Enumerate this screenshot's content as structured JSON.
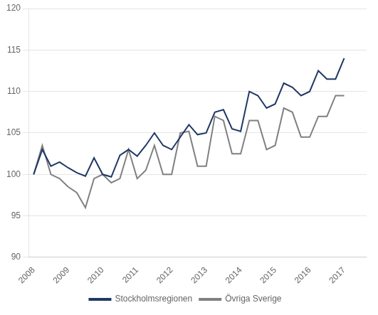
{
  "chart_data": {
    "type": "line",
    "x": [
      2008,
      2008.25,
      2008.5,
      2008.75,
      2009,
      2009.25,
      2009.5,
      2009.75,
      2010,
      2010.25,
      2010.5,
      2010.75,
      2011,
      2011.25,
      2011.5,
      2011.75,
      2012,
      2012.25,
      2012.5,
      2012.75,
      2013,
      2013.25,
      2013.5,
      2013.75,
      2014,
      2014.25,
      2014.5,
      2014.75,
      2015,
      2015.25,
      2015.5,
      2015.75,
      2016,
      2016.25,
      2016.5,
      2016.75,
      2017
    ],
    "series": [
      {
        "name": "Stockholmsregionen",
        "color": "#1F3864",
        "values": [
          100.0,
          103.0,
          101.0,
          101.5,
          100.8,
          100.2,
          99.8,
          102.0,
          100.0,
          99.7,
          102.3,
          103.0,
          102.2,
          103.5,
          105.0,
          103.5,
          103.0,
          104.5,
          106.0,
          104.8,
          105.0,
          107.5,
          107.8,
          105.5,
          105.2,
          110.0,
          109.5,
          108.0,
          108.5,
          111.0,
          110.5,
          109.5,
          110.0,
          112.5,
          111.5,
          111.5,
          114.0
        ]
      },
      {
        "name": "Övriga Sverige",
        "color": "#808080",
        "values": [
          100.0,
          103.5,
          100.0,
          99.5,
          98.5,
          97.8,
          96.0,
          99.5,
          100.0,
          99.0,
          99.5,
          103.0,
          99.5,
          100.5,
          103.5,
          100.0,
          100.0,
          105.0,
          105.2,
          101.0,
          101.0,
          107.0,
          106.5,
          102.5,
          102.5,
          106.5,
          106.5,
          103.0,
          103.5,
          108.0,
          107.5,
          104.5,
          104.5,
          107.0,
          107.0,
          109.5,
          109.5
        ]
      }
    ],
    "xlim": [
      2007.85,
      2017.65
    ],
    "xticks": [
      2008,
      2009,
      2010,
      2011,
      2012,
      2013,
      2014,
      2015,
      2016,
      2017
    ],
    "ylim": [
      90,
      120
    ],
    "yticks": [
      90,
      95,
      100,
      105,
      110,
      115,
      120
    ],
    "grid": "y",
    "legend": "bottom"
  }
}
